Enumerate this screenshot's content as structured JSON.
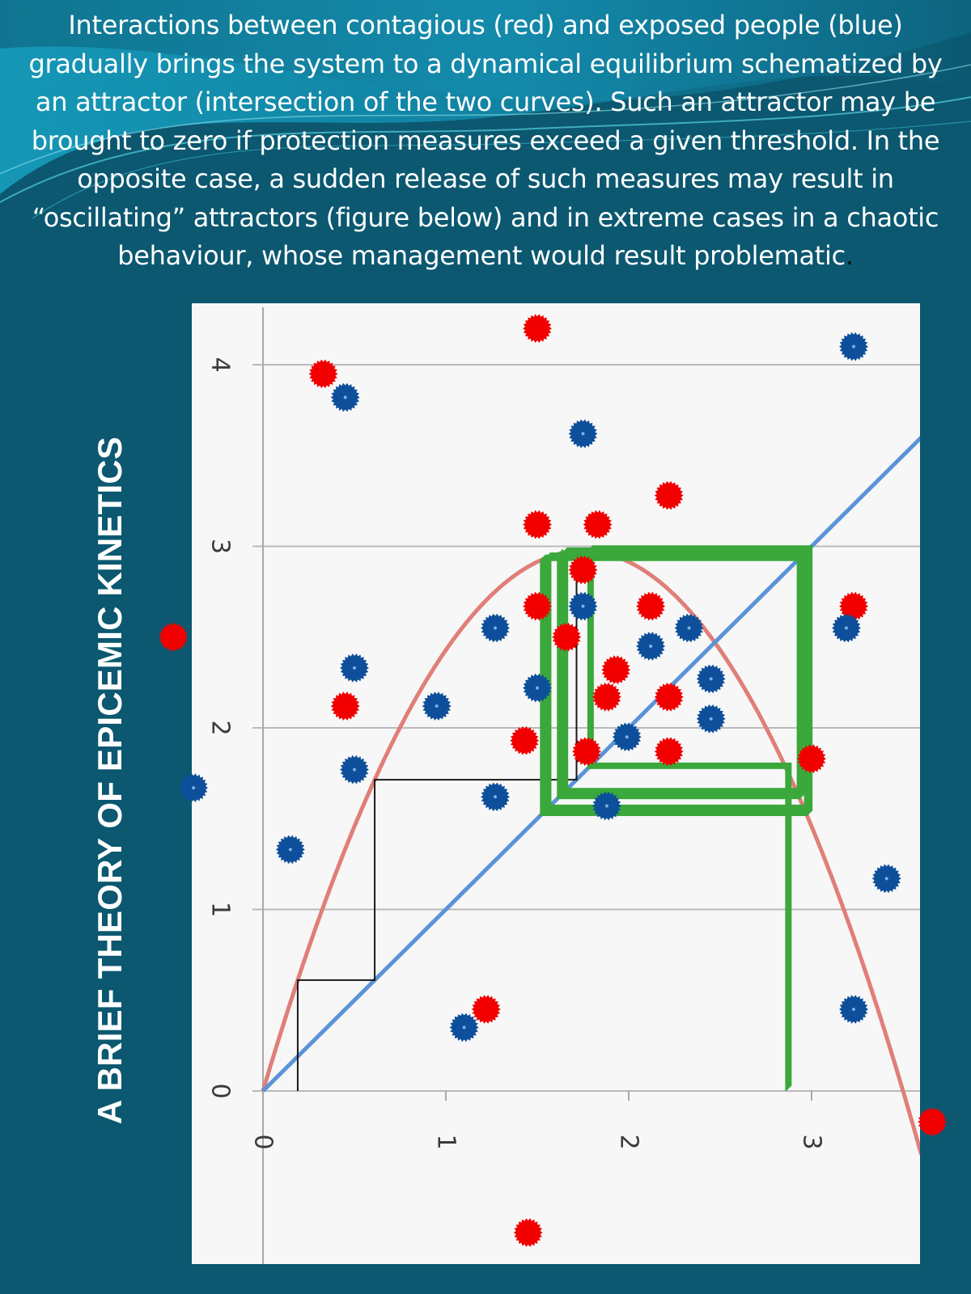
{
  "intro_text": "Interactions between contagious (red) and exposed people (blue) gradually brings the system to a dynamical equilibrium schematized by an attractor (intersection of the two curves). Such an attractor may be brought to zero if protection measures exceed a given threshold. In the opposite case, a sudden release of such measures may result in “oscillating” attractors (figure below) and in extreme cases in a chaotic behaviour, whose management would result problematic",
  "intro_end_mark": ".",
  "side_title": "A BRIEF THEORY OF EPICEMIC KINETICS",
  "colors": {
    "background": "#0b5870",
    "panel": "#f7f7f7",
    "parabola": "#e07e78",
    "diagonal": "#5b93d8",
    "cobweb_black": "#1a1a1a",
    "cobweb_green": "#3aa83a",
    "contagious": "#f20000",
    "exposed": "#0d4f9a"
  },
  "chart_data": {
    "type": "line",
    "xlim": [
      -0.4,
      3.6
    ],
    "ylim": [
      -0.93,
      4.3
    ],
    "x_ticks": [
      "0",
      "1",
      "2",
      "3"
    ],
    "y_ticks": [
      "0",
      "1",
      "2",
      "3",
      "4"
    ],
    "grid": "horizontal",
    "curves": [
      {
        "kind": "parabola",
        "r": 3.4,
        "k": 3.5,
        "label": ""
      },
      {
        "kind": "identity",
        "label": ""
      }
    ],
    "cobwebs": [
      {
        "color": "cobweb_black",
        "x0": 0.19,
        "steps": 3,
        "converge_cycles": 0,
        "inner_lines": 0
      },
      {
        "color": "cobweb_green",
        "x0": 2.86,
        "steps": 3,
        "converge_cycles": 3,
        "inner_lines": 4
      }
    ],
    "contagious_points": [
      [
        1.5,
        4.2
      ],
      [
        0.33,
        3.95
      ],
      [
        1.5,
        3.12
      ],
      [
        1.83,
        3.12
      ],
      [
        2.22,
        3.28
      ],
      [
        1.75,
        2.87
      ],
      [
        1.5,
        2.67
      ],
      [
        2.12,
        2.67
      ],
      [
        3.23,
        2.67
      ],
      [
        1.66,
        2.5
      ],
      [
        1.93,
        2.32
      ],
      [
        0.45,
        2.12
      ],
      [
        1.88,
        2.17
      ],
      [
        2.22,
        2.17
      ],
      [
        1.43,
        1.93
      ],
      [
        1.77,
        1.87
      ],
      [
        2.22,
        1.87
      ],
      [
        3.0,
        1.83
      ],
      [
        1.22,
        0.45
      ],
      [
        1.45,
        -0.78
      ]
    ],
    "exposed_points": [
      [
        3.23,
        4.1
      ],
      [
        0.45,
        3.82
      ],
      [
        1.75,
        3.62
      ],
      [
        1.27,
        2.55
      ],
      [
        1.75,
        2.67
      ],
      [
        2.12,
        2.45
      ],
      [
        2.33,
        2.55
      ],
      [
        3.19,
        2.55
      ],
      [
        0.5,
        2.33
      ],
      [
        1.5,
        2.22
      ],
      [
        2.45,
        2.27
      ],
      [
        0.95,
        2.12
      ],
      [
        2.45,
        2.05
      ],
      [
        1.99,
        1.95
      ],
      [
        0.5,
        1.77
      ],
      [
        1.27,
        1.62
      ],
      [
        1.88,
        1.57
      ],
      [
        0.15,
        1.33
      ],
      [
        3.41,
        1.17
      ],
      [
        3.23,
        0.45
      ],
      [
        1.1,
        0.35
      ]
    ],
    "outside_contagious_points": [
      [
        -0.49,
        2.5
      ],
      [
        3.66,
        -0.17
      ]
    ],
    "outside_exposed_points": [
      [
        -0.38,
        1.67
      ]
    ]
  }
}
